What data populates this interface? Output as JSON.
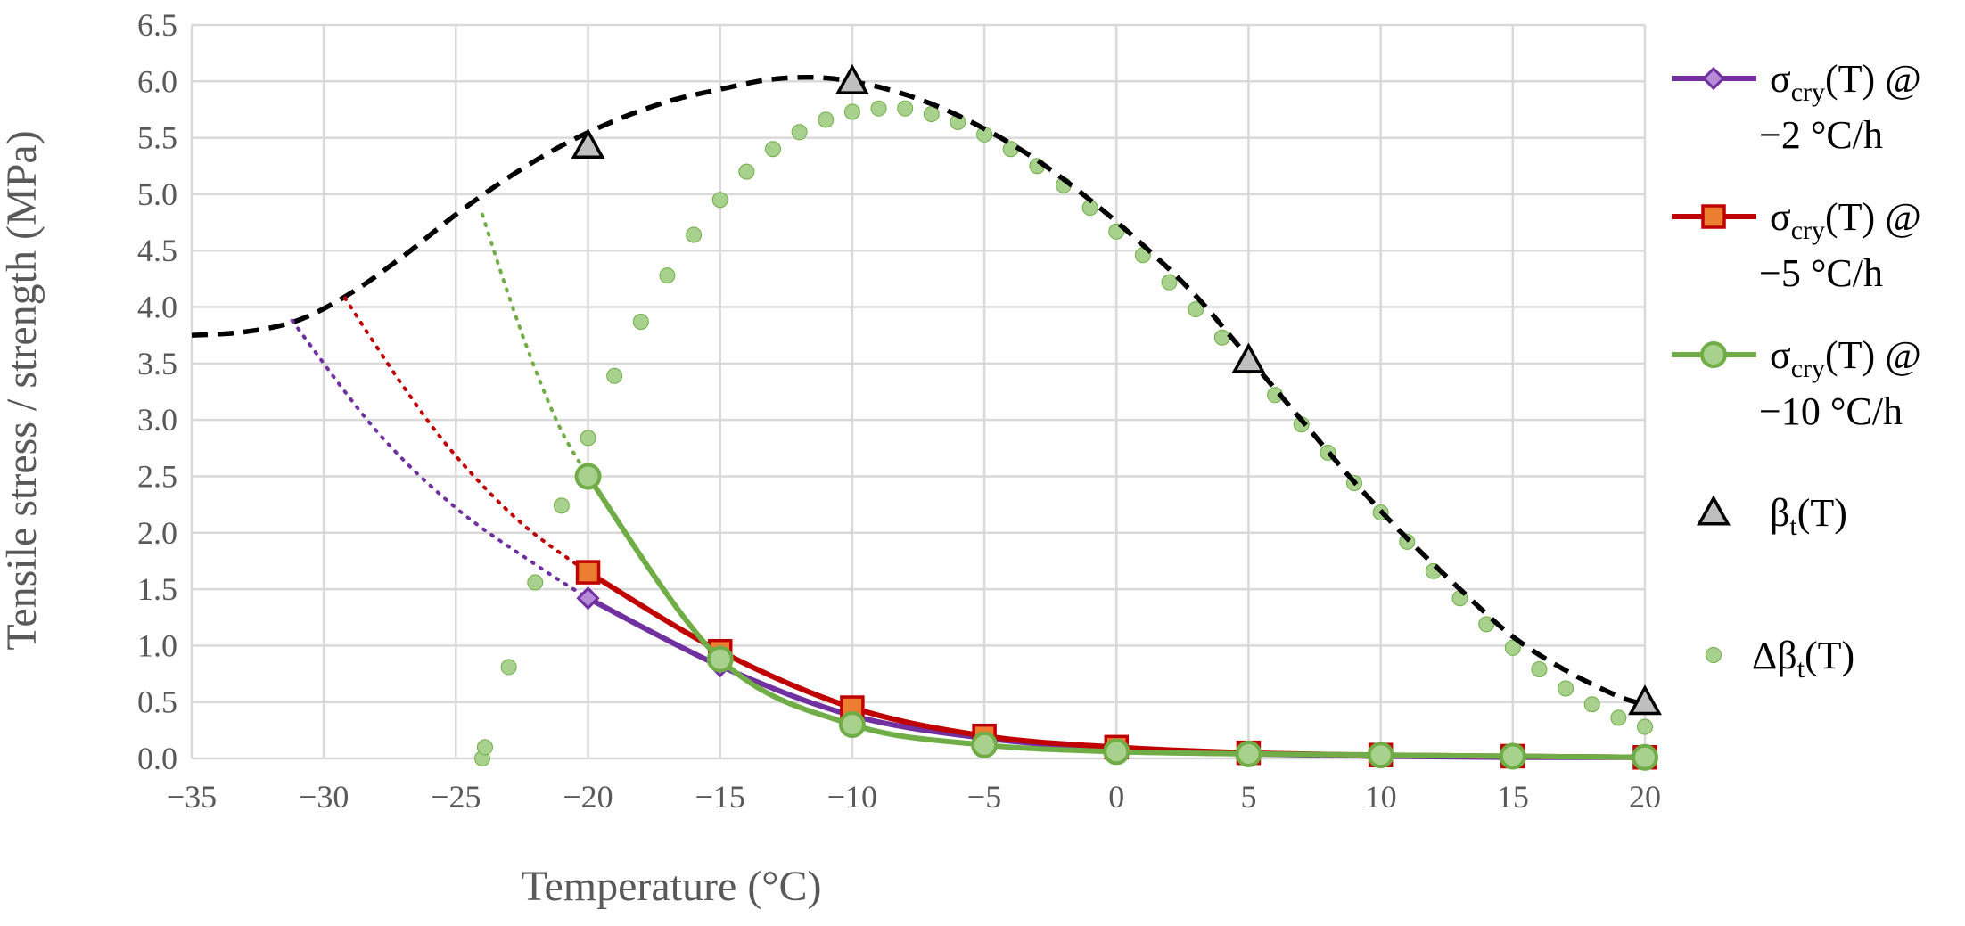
{
  "chart_data": {
    "type": "line",
    "xlabel": "Temperature (°C)",
    "ylabel": "Tensile stress / strength (MPa)",
    "xlim": [
      -35,
      20
    ],
    "ylim": [
      0,
      6.5
    ],
    "x_ticks": [
      "−35",
      "−30",
      "−25",
      "−20",
      "−15",
      "−10",
      "−5",
      "0",
      "5",
      "10",
      "15",
      "20"
    ],
    "y_ticks": [
      "0.0",
      "0.5",
      "1.0",
      "1.5",
      "2.0",
      "2.5",
      "3.0",
      "3.5",
      "4.0",
      "4.5",
      "5.0",
      "5.5",
      "6.0",
      "6.5"
    ],
    "grid": true,
    "legend_position": "right",
    "colors": {
      "purple": "#7030a0",
      "purple_fill": "#b78ad8",
      "red": "#c00000",
      "red_fill": "#ed7d31",
      "green": "#70ad47",
      "green_fill": "#a9d18e",
      "black": "#000000",
      "gray_fill": "#bfbfbf"
    },
    "series": [
      {
        "name": "σcry(T) @ −2 °C/h",
        "legend_main": "σ",
        "legend_sub": "cry",
        "legend_rest": "(T) @",
        "legend_line2": "−2 °C/h",
        "marker": "diamond",
        "points": [
          [
            -20,
            1.42
          ],
          [
            -15,
            0.82
          ],
          [
            -10,
            0.38
          ],
          [
            -5,
            0.18
          ],
          [
            0,
            0.08
          ],
          [
            5,
            0.04
          ],
          [
            10,
            0.02
          ],
          [
            15,
            0.01
          ],
          [
            20,
            0.01
          ]
        ],
        "extrapolation": [
          [
            -31.2,
            3.88
          ],
          [
            -28,
            2.9
          ],
          [
            -25,
            2.22
          ],
          [
            -22,
            1.72
          ],
          [
            -20,
            1.42
          ]
        ]
      },
      {
        "name": "σcry(T) @ −5 °C/h",
        "legend_main": "σ",
        "legend_sub": "cry",
        "legend_rest": "(T) @",
        "legend_line2": "−5 °C/h",
        "marker": "square",
        "points": [
          [
            -20,
            1.65
          ],
          [
            -15,
            0.95
          ],
          [
            -10,
            0.45
          ],
          [
            -5,
            0.2
          ],
          [
            0,
            0.1
          ],
          [
            5,
            0.05
          ],
          [
            10,
            0.03
          ],
          [
            15,
            0.02
          ],
          [
            20,
            0.01
          ]
        ],
        "extrapolation": [
          [
            -29.2,
            4.08
          ],
          [
            -27,
            3.3
          ],
          [
            -25,
            2.68
          ],
          [
            -22.5,
            2.08
          ],
          [
            -20,
            1.65
          ]
        ]
      },
      {
        "name": "σcry(T) @ −10 °C/h",
        "legend_main": "σ",
        "legend_sub": "cry",
        "legend_rest": "(T) @",
        "legend_line2": "−10 °C/h",
        "marker": "circle",
        "points": [
          [
            -20,
            2.5
          ],
          [
            -15,
            0.88
          ],
          [
            -10,
            0.3
          ],
          [
            -5,
            0.12
          ],
          [
            0,
            0.06
          ],
          [
            5,
            0.04
          ],
          [
            10,
            0.03
          ],
          [
            15,
            0.02
          ],
          [
            20,
            0.01
          ]
        ],
        "extrapolation": [
          [
            -24,
            4.82
          ],
          [
            -23,
            4.1
          ],
          [
            -22,
            3.45
          ],
          [
            -21,
            2.9
          ],
          [
            -20,
            2.5
          ]
        ]
      },
      {
        "name": "βt(T)",
        "legend_main": "β",
        "legend_sub": "t",
        "legend_rest": "(T)",
        "marker": "triangle",
        "points": [
          [
            -20,
            5.43
          ],
          [
            -10,
            6.0
          ],
          [
            5,
            3.53
          ],
          [
            20,
            0.5
          ]
        ],
        "fit_curve": [
          [
            -35,
            3.75
          ],
          [
            -33,
            3.78
          ],
          [
            -31,
            3.88
          ],
          [
            -29,
            4.12
          ],
          [
            -27,
            4.45
          ],
          [
            -25,
            4.82
          ],
          [
            -23,
            5.15
          ],
          [
            -21,
            5.43
          ],
          [
            -19,
            5.65
          ],
          [
            -17,
            5.82
          ],
          [
            -15,
            5.93
          ],
          [
            -13,
            6.02
          ],
          [
            -11,
            6.03
          ],
          [
            -9,
            5.95
          ],
          [
            -7,
            5.8
          ],
          [
            -5,
            5.58
          ],
          [
            -3,
            5.3
          ],
          [
            -1,
            4.95
          ],
          [
            1,
            4.55
          ],
          [
            3,
            4.1
          ],
          [
            5,
            3.55
          ],
          [
            7,
            3.0
          ],
          [
            9,
            2.45
          ],
          [
            11,
            1.95
          ],
          [
            13,
            1.5
          ],
          [
            15,
            1.08
          ],
          [
            17,
            0.78
          ],
          [
            19,
            0.55
          ],
          [
            20,
            0.48
          ]
        ]
      },
      {
        "name": "Δβt(T)",
        "legend_main": "Δβ",
        "legend_sub": "t",
        "legend_rest": "(T)",
        "marker": "dot",
        "points": [
          [
            -24,
            0.0
          ],
          [
            -23.9,
            0.1
          ],
          [
            -23,
            0.81
          ],
          [
            -22,
            1.56
          ],
          [
            -21,
            2.24
          ],
          [
            -20,
            2.84
          ],
          [
            -19,
            3.39
          ],
          [
            -18,
            3.87
          ],
          [
            -17,
            4.28
          ],
          [
            -16,
            4.64
          ],
          [
            -15,
            4.95
          ],
          [
            -14,
            5.2
          ],
          [
            -13,
            5.4
          ],
          [
            -12,
            5.55
          ],
          [
            -11,
            5.66
          ],
          [
            -10,
            5.73
          ],
          [
            -9,
            5.76
          ],
          [
            -8,
            5.76
          ],
          [
            -7,
            5.71
          ],
          [
            -6,
            5.64
          ],
          [
            -5,
            5.53
          ],
          [
            -4,
            5.4
          ],
          [
            -3,
            5.25
          ],
          [
            -2,
            5.08
          ],
          [
            -1,
            4.88
          ],
          [
            0,
            4.67
          ],
          [
            1,
            4.46
          ],
          [
            2,
            4.22
          ],
          [
            3,
            3.98
          ],
          [
            4,
            3.73
          ],
          [
            5,
            3.48
          ],
          [
            6,
            3.22
          ],
          [
            7,
            2.96
          ],
          [
            8,
            2.71
          ],
          [
            9,
            2.44
          ],
          [
            10,
            2.18
          ],
          [
            11,
            1.92
          ],
          [
            12,
            1.66
          ],
          [
            13,
            1.42
          ],
          [
            14,
            1.19
          ],
          [
            15,
            0.98
          ],
          [
            16,
            0.79
          ],
          [
            17,
            0.62
          ],
          [
            18,
            0.48
          ],
          [
            19,
            0.36
          ],
          [
            20,
            0.28
          ]
        ]
      }
    ]
  }
}
